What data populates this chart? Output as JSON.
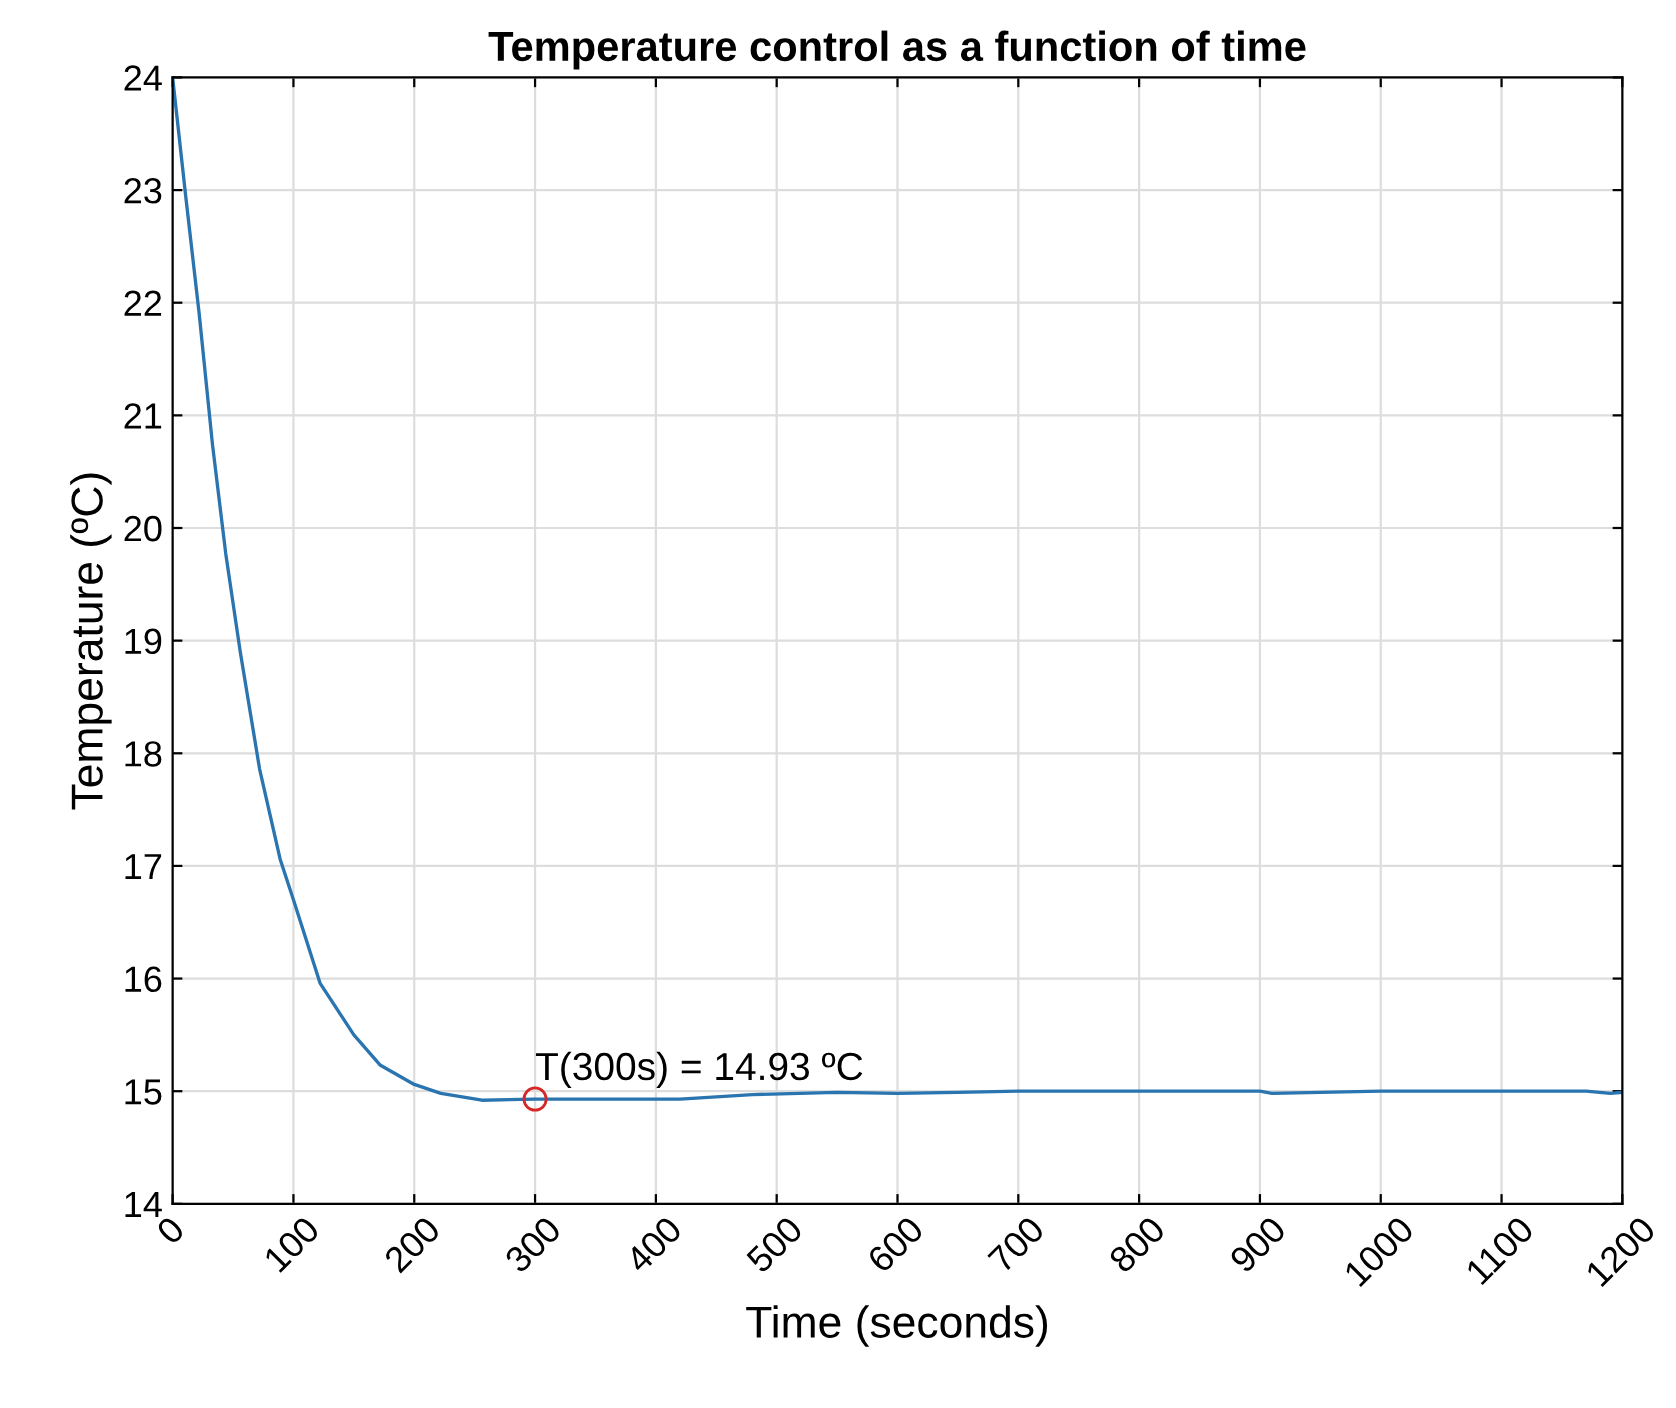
{
  "chart_data": {
    "type": "line",
    "title": "Temperature control as a function of time",
    "xlabel": "Time (seconds)",
    "ylabel": "Temperature (ºC)",
    "series": [
      {
        "color": "#2a74b0",
        "x": [
          0,
          11,
          22,
          33,
          44,
          56,
          72,
          89,
          100,
          122,
          150,
          172,
          200,
          222,
          256,
          300,
          350,
          420,
          480,
          550,
          600,
          650,
          700,
          800,
          900,
          910,
          1000,
          1100,
          1170,
          1190,
          1200
        ],
        "values": [
          24,
          22.93,
          21.9,
          20.74,
          19.77,
          18.9,
          17.86,
          17.06,
          16.7,
          15.96,
          15.5,
          15.23,
          15.06,
          14.98,
          14.92,
          14.93,
          14.93,
          14.93,
          14.97,
          14.99,
          14.98,
          14.99,
          15.0,
          15.0,
          15.0,
          14.98,
          15.0,
          15.0,
          15.0,
          14.98,
          14.99
        ]
      },
      {
        "type": "scatter",
        "color": "#d62728",
        "marker": "circle",
        "x": [
          300
        ],
        "values": [
          14.93
        ]
      }
    ],
    "annotations": [
      {
        "text": "T(300s) = 14.93 ºC",
        "x": 300,
        "y": 14.93
      }
    ],
    "xlim": [
      0,
      1200
    ],
    "xticks": [
      0,
      100,
      200,
      300,
      400,
      500,
      600,
      700,
      800,
      900,
      1000,
      1100,
      1200
    ],
    "ylim": [
      14,
      24
    ],
    "yticks": [
      14,
      15,
      16,
      17,
      18,
      19,
      20,
      21,
      22,
      23,
      24
    ],
    "grid": true
  }
}
